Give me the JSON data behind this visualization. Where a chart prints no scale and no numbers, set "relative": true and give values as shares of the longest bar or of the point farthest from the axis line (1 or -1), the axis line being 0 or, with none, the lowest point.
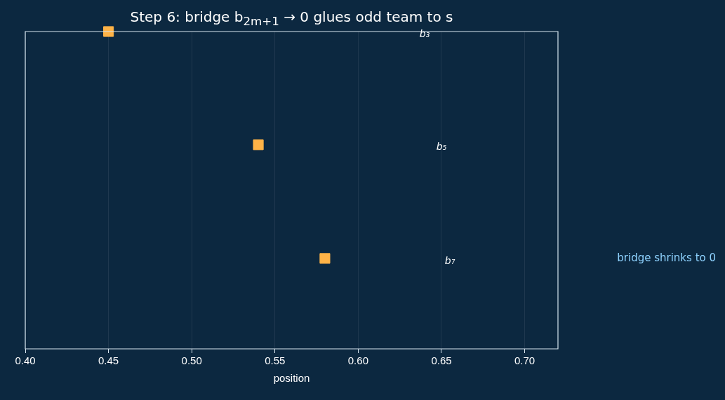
{
  "chart_data": {
    "type": "scatter",
    "title": "Step 6: bridge b$_{2m+1}$ → 0 glues odd team to s",
    "xlabel": "position",
    "relative": true,
    "x": [
      0.45,
      0.54,
      0.58
    ],
    "series": [
      {
        "color": "#ffb347",
        "values": [
          1,
          0.643,
          0.285
        ]
      }
    ],
    "marker": "square",
    "grid": "x",
    "legend": false,
    "tick_labels": "x",
    "xlim": [
      0.4,
      0.72
    ],
    "xticks": [
      {
        "value": 0.4,
        "label": "0.40"
      },
      {
        "value": 0.45,
        "label": "0.45"
      },
      {
        "value": 0.5,
        "label": "0.50"
      },
      {
        "value": 0.55,
        "label": "0.55"
      },
      {
        "value": 0.6,
        "label": "0.60"
      },
      {
        "value": 0.65,
        "label": "0.65"
      },
      {
        "value": 0.7,
        "label": "0.70"
      }
    ],
    "annotations": [
      "b₃",
      "b₅",
      "b₇",
      "bridge shrinks to 0"
    ]
  }
}
